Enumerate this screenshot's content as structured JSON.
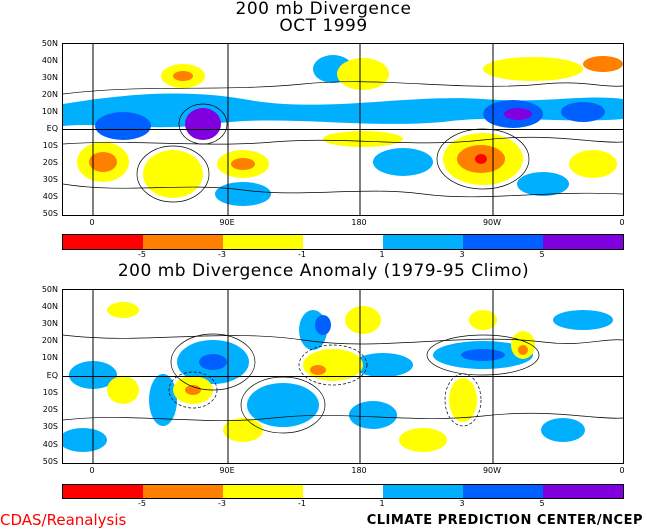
{
  "top_map": {
    "title_line1": "200  mb  Divergence",
    "title_line2": "OCT  1999"
  },
  "bottom_map": {
    "title": "200  mb  Divergence  Anomaly  (1979-95  Climo)"
  },
  "lat_labels": [
    "50N",
    "40N",
    "30N",
    "20N",
    "10N",
    "EQ",
    "10S",
    "20S",
    "30S",
    "40S",
    "50S"
  ],
  "lon_labels": [
    "0",
    "90E",
    "180",
    "90W",
    "0"
  ],
  "colorbar": {
    "colors": [
      "#ff0000",
      "#ff8000",
      "#ffff00",
      "#ffffff",
      "#00b0ff",
      "#0060ff",
      "#8000e0"
    ],
    "tick_labels": [
      "-5",
      "-3",
      "-1",
      "1",
      "3",
      "5"
    ]
  },
  "footer": {
    "left": "CDAS/Reanalysis",
    "right": "CLIMATE  PREDICTION  CENTER/NCEP"
  }
}
